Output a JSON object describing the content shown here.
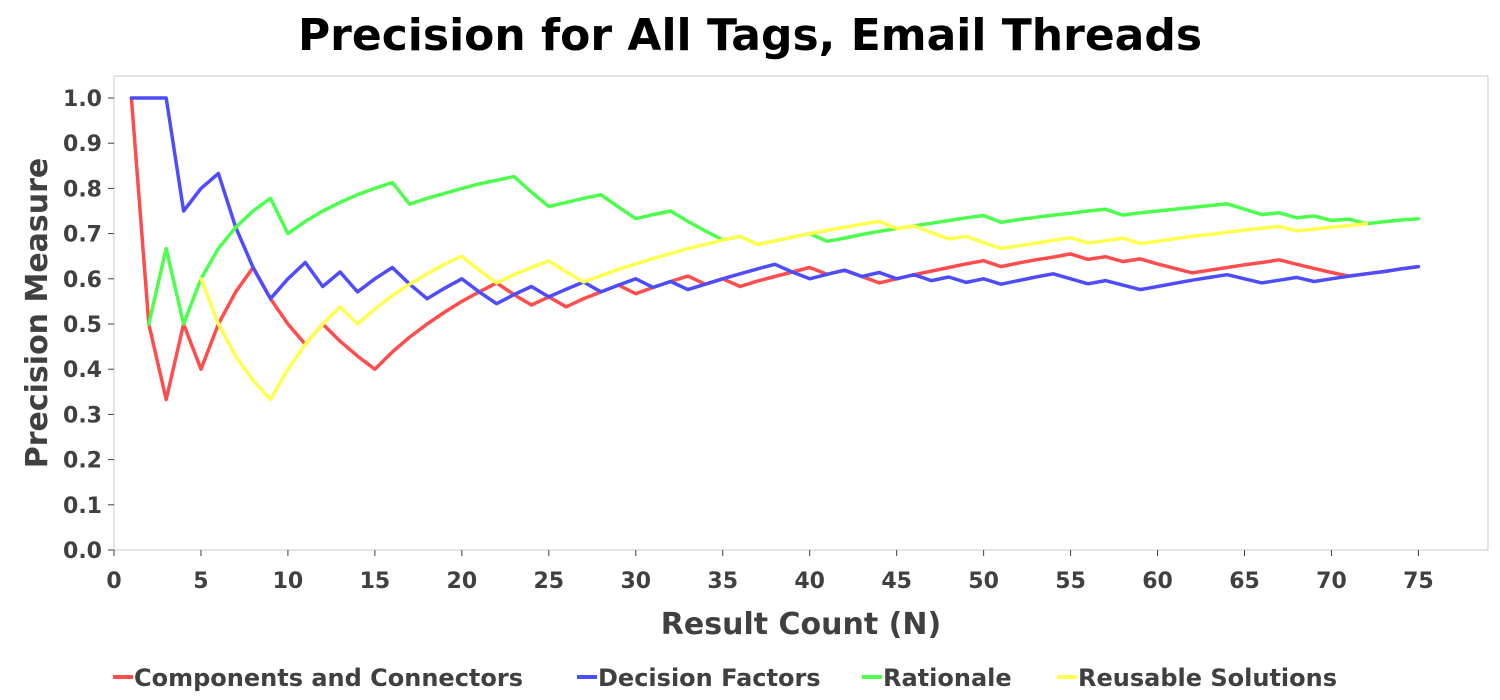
{
  "chart_data": {
    "type": "line",
    "title": "Precision for All Tags, Email Threads",
    "xlabel": "Result Count (N)",
    "ylabel": "Precision Measure",
    "xlim": [
      0,
      79
    ],
    "ylim": [
      0,
      1.0
    ],
    "xticks": [
      0,
      5,
      10,
      15,
      20,
      25,
      30,
      35,
      40,
      45,
      50,
      55,
      60,
      65,
      70,
      75
    ],
    "yticks": [
      0.0,
      0.1,
      0.2,
      0.3,
      0.4,
      0.5,
      0.6,
      0.7,
      0.8,
      0.9,
      1.0
    ],
    "ytick_labels": [
      "0.0",
      "0.1",
      "0.2",
      "0.3",
      "0.4",
      "0.5",
      "0.6",
      "0.7",
      "0.8",
      "0.9",
      "1.0"
    ],
    "grid": false,
    "legend_position": "bottom",
    "series": [
      {
        "name": "Components and Connectors",
        "color": "#ff4d4d",
        "points": [
          [
            1,
            1.0
          ],
          [
            2,
            0.5
          ],
          [
            3,
            0.333
          ],
          [
            4,
            0.5
          ],
          [
            5,
            0.4
          ],
          [
            6,
            0.5
          ],
          [
            7,
            0.571
          ],
          [
            8,
            0.625
          ],
          [
            9,
            0.556
          ],
          [
            10,
            0.5
          ],
          [
            11,
            0.455
          ],
          [
            12,
            0.5
          ],
          [
            13,
            0.462
          ],
          [
            14,
            0.429
          ],
          [
            15,
            0.4
          ],
          [
            16,
            0.438
          ],
          [
            17,
            0.471
          ],
          [
            18,
            0.5
          ],
          [
            19,
            0.526
          ],
          [
            20,
            0.55
          ],
          [
            21,
            0.571
          ],
          [
            22,
            0.591
          ],
          [
            23,
            0.565
          ],
          [
            24,
            0.542
          ],
          [
            25,
            0.56
          ],
          [
            26,
            0.538
          ],
          [
            27,
            0.556
          ],
          [
            28,
            0.571
          ],
          [
            29,
            0.586
          ],
          [
            30,
            0.567
          ],
          [
            31,
            0.581
          ],
          [
            32,
            0.594
          ],
          [
            33,
            0.606
          ],
          [
            34,
            0.588
          ],
          [
            35,
            0.6
          ],
          [
            36,
            0.583
          ],
          [
            37,
            0.595
          ],
          [
            38,
            0.605
          ],
          [
            39,
            0.615
          ],
          [
            40,
            0.625
          ],
          [
            41,
            0.61
          ],
          [
            42,
            0.619
          ],
          [
            43,
            0.605
          ],
          [
            44,
            0.591
          ],
          [
            45,
            0.6
          ],
          [
            46,
            0.609
          ],
          [
            47,
            0.617
          ],
          [
            48,
            0.625
          ],
          [
            49,
            0.633
          ],
          [
            50,
            0.64
          ],
          [
            51,
            0.627
          ],
          [
            52,
            0.635
          ],
          [
            53,
            0.642
          ],
          [
            54,
            0.648
          ],
          [
            55,
            0.655
          ],
          [
            56,
            0.643
          ],
          [
            57,
            0.649
          ],
          [
            58,
            0.638
          ],
          [
            59,
            0.644
          ],
          [
            60,
            0.633
          ],
          [
            61,
            0.623
          ],
          [
            62,
            0.613
          ],
          [
            63,
            0.619
          ],
          [
            64,
            0.625
          ],
          [
            65,
            0.631
          ],
          [
            66,
            0.636
          ],
          [
            67,
            0.642
          ],
          [
            68,
            0.632
          ],
          [
            69,
            0.623
          ],
          [
            70,
            0.614
          ],
          [
            71,
            0.606
          ],
          [
            72,
            0.611
          ],
          [
            73,
            0.616
          ],
          [
            74,
            0.622
          ],
          [
            75,
            0.627
          ]
        ]
      },
      {
        "name": "Decision Factors",
        "color": "#4d4dff",
        "points": [
          [
            1,
            1.0
          ],
          [
            2,
            1.0
          ],
          [
            3,
            1.0
          ],
          [
            4,
            0.75
          ],
          [
            5,
            0.8
          ],
          [
            6,
            0.833
          ],
          [
            7,
            0.714
          ],
          [
            8,
            0.625
          ],
          [
            9,
            0.556
          ],
          [
            10,
            0.6
          ],
          [
            11,
            0.636
          ],
          [
            12,
            0.583
          ],
          [
            13,
            0.615
          ],
          [
            14,
            0.571
          ],
          [
            15,
            0.6
          ],
          [
            16,
            0.625
          ],
          [
            17,
            0.588
          ],
          [
            18,
            0.556
          ],
          [
            19,
            0.579
          ],
          [
            20,
            0.6
          ],
          [
            21,
            0.571
          ],
          [
            22,
            0.545
          ],
          [
            23,
            0.565
          ],
          [
            24,
            0.583
          ],
          [
            25,
            0.56
          ],
          [
            26,
            0.577
          ],
          [
            27,
            0.593
          ],
          [
            28,
            0.571
          ],
          [
            29,
            0.586
          ],
          [
            30,
            0.6
          ],
          [
            31,
            0.581
          ],
          [
            32,
            0.594
          ],
          [
            33,
            0.576
          ],
          [
            34,
            0.588
          ],
          [
            35,
            0.6
          ],
          [
            36,
            0.611
          ],
          [
            37,
            0.622
          ],
          [
            38,
            0.632
          ],
          [
            39,
            0.615
          ],
          [
            40,
            0.6
          ],
          [
            41,
            0.61
          ],
          [
            42,
            0.619
          ],
          [
            43,
            0.605
          ],
          [
            44,
            0.614
          ],
          [
            45,
            0.6
          ],
          [
            46,
            0.609
          ],
          [
            47,
            0.596
          ],
          [
            48,
            0.604
          ],
          [
            49,
            0.592
          ],
          [
            50,
            0.6
          ],
          [
            51,
            0.588
          ],
          [
            52,
            0.596
          ],
          [
            53,
            0.604
          ],
          [
            54,
            0.611
          ],
          [
            55,
            0.6
          ],
          [
            56,
            0.589
          ],
          [
            57,
            0.596
          ],
          [
            58,
            0.586
          ],
          [
            59,
            0.576
          ],
          [
            60,
            0.583
          ],
          [
            61,
            0.59
          ],
          [
            62,
            0.597
          ],
          [
            63,
            0.603
          ],
          [
            64,
            0.609
          ],
          [
            65,
            0.6
          ],
          [
            66,
            0.591
          ],
          [
            67,
            0.597
          ],
          [
            68,
            0.603
          ],
          [
            69,
            0.594
          ],
          [
            70,
            0.6
          ],
          [
            71,
            0.606
          ],
          [
            72,
            0.611
          ],
          [
            73,
            0.616
          ],
          [
            74,
            0.622
          ],
          [
            75,
            0.627
          ]
        ]
      },
      {
        "name": "Rationale",
        "color": "#4dff4d",
        "points": [
          [
            2,
            0.5
          ],
          [
            3,
            0.667
          ],
          [
            4,
            0.5
          ],
          [
            5,
            0.6
          ],
          [
            6,
            0.667
          ],
          [
            7,
            0.714
          ],
          [
            8,
            0.75
          ],
          [
            9,
            0.778
          ],
          [
            10,
            0.7
          ],
          [
            11,
            0.727
          ],
          [
            12,
            0.75
          ],
          [
            13,
            0.769
          ],
          [
            14,
            0.786
          ],
          [
            15,
            0.8
          ],
          [
            16,
            0.813
          ],
          [
            17,
            0.765
          ],
          [
            18,
            0.778
          ],
          [
            19,
            0.789
          ],
          [
            20,
            0.8
          ],
          [
            21,
            0.81
          ],
          [
            22,
            0.818
          ],
          [
            23,
            0.826
          ],
          [
            24,
            0.792
          ],
          [
            25,
            0.76
          ],
          [
            26,
            0.769
          ],
          [
            27,
            0.778
          ],
          [
            28,
            0.786
          ],
          [
            29,
            0.759
          ],
          [
            30,
            0.733
          ],
          [
            31,
            0.742
          ],
          [
            32,
            0.75
          ],
          [
            33,
            0.727
          ],
          [
            34,
            0.706
          ],
          [
            35,
            0.686
          ],
          [
            36,
            0.694
          ],
          [
            37,
            0.676
          ],
          [
            38,
            0.684
          ],
          [
            39,
            0.692
          ],
          [
            40,
            0.7
          ],
          [
            41,
            0.683
          ],
          [
            42,
            0.69
          ],
          [
            43,
            0.698
          ],
          [
            44,
            0.705
          ],
          [
            45,
            0.711
          ],
          [
            46,
            0.717
          ],
          [
            47,
            0.723
          ],
          [
            48,
            0.729
          ],
          [
            49,
            0.735
          ],
          [
            50,
            0.74
          ],
          [
            51,
            0.725
          ],
          [
            52,
            0.731
          ],
          [
            53,
            0.736
          ],
          [
            54,
            0.741
          ],
          [
            55,
            0.745
          ],
          [
            56,
            0.75
          ],
          [
            57,
            0.754
          ],
          [
            58,
            0.741
          ],
          [
            59,
            0.746
          ],
          [
            60,
            0.75
          ],
          [
            61,
            0.754
          ],
          [
            62,
            0.758
          ],
          [
            63,
            0.762
          ],
          [
            64,
            0.766
          ],
          [
            65,
            0.754
          ],
          [
            66,
            0.742
          ],
          [
            67,
            0.746
          ],
          [
            68,
            0.735
          ],
          [
            69,
            0.739
          ],
          [
            70,
            0.729
          ],
          [
            71,
            0.732
          ],
          [
            72,
            0.722
          ],
          [
            73,
            0.726
          ],
          [
            74,
            0.73
          ],
          [
            75,
            0.733
          ]
        ]
      },
      {
        "name": "Reusable Solutions",
        "color": "#ffff4d",
        "points": [
          [
            5,
            0.6
          ],
          [
            6,
            0.5
          ],
          [
            7,
            0.429
          ],
          [
            8,
            0.375
          ],
          [
            9,
            0.333
          ],
          [
            10,
            0.4
          ],
          [
            11,
            0.455
          ],
          [
            12,
            0.5
          ],
          [
            13,
            0.538
          ],
          [
            14,
            0.5
          ],
          [
            15,
            0.533
          ],
          [
            16,
            0.563
          ],
          [
            17,
            0.588
          ],
          [
            18,
            0.611
          ],
          [
            19,
            0.632
          ],
          [
            20,
            0.65
          ],
          [
            21,
            0.619
          ],
          [
            22,
            0.591
          ],
          [
            23,
            0.609
          ],
          [
            24,
            0.625
          ],
          [
            25,
            0.64
          ],
          [
            26,
            0.615
          ],
          [
            27,
            0.593
          ],
          [
            28,
            0.607
          ],
          [
            29,
            0.621
          ],
          [
            30,
            0.633
          ],
          [
            31,
            0.645
          ],
          [
            32,
            0.656
          ],
          [
            33,
            0.667
          ],
          [
            34,
            0.676
          ],
          [
            35,
            0.686
          ],
          [
            36,
            0.694
          ],
          [
            37,
            0.676
          ],
          [
            38,
            0.684
          ],
          [
            39,
            0.692
          ],
          [
            40,
            0.7
          ],
          [
            41,
            0.707
          ],
          [
            42,
            0.714
          ],
          [
            43,
            0.721
          ],
          [
            44,
            0.727
          ],
          [
            45,
            0.711
          ],
          [
            46,
            0.717
          ],
          [
            47,
            0.702
          ],
          [
            48,
            0.688
          ],
          [
            49,
            0.694
          ],
          [
            50,
            0.68
          ],
          [
            51,
            0.667
          ],
          [
            52,
            0.673
          ],
          [
            53,
            0.679
          ],
          [
            54,
            0.685
          ],
          [
            55,
            0.691
          ],
          [
            56,
            0.679
          ],
          [
            57,
            0.684
          ],
          [
            58,
            0.69
          ],
          [
            59,
            0.678
          ],
          [
            60,
            0.683
          ],
          [
            61,
            0.689
          ],
          [
            62,
            0.694
          ],
          [
            63,
            0.698
          ],
          [
            64,
            0.703
          ],
          [
            65,
            0.708
          ],
          [
            66,
            0.712
          ],
          [
            67,
            0.716
          ],
          [
            68,
            0.706
          ],
          [
            69,
            0.71
          ],
          [
            70,
            0.714
          ],
          [
            71,
            0.718
          ],
          [
            72,
            0.722
          ]
        ]
      }
    ]
  }
}
